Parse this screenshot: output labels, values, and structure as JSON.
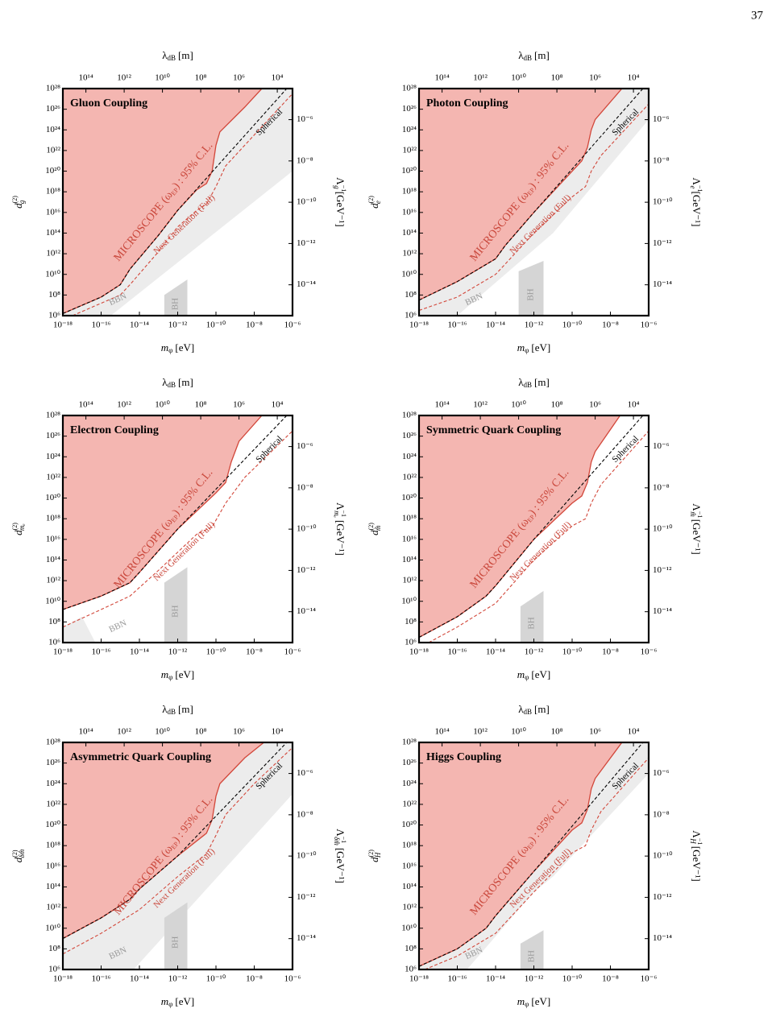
{
  "page_number": "37",
  "shared_axes": {
    "log_scale": true,
    "top_label": {
      "symbol": "λ",
      "subscript": "dB",
      "unit": "[m]"
    },
    "x_label": {
      "symbol": "m",
      "subscript": "φ",
      "unit": "[eV]"
    },
    "y_label": {
      "symbol": "d",
      "superscript": "(2)"
    },
    "y2_label": {
      "symbol": "Λ",
      "superscript": "−1",
      "unit": "[GeV⁻¹]"
    },
    "xlim": [
      1e-18,
      1e-06
    ],
    "ylim": [
      1000000.0,
      1e+28
    ],
    "x2lim": [
      1600000000000000.0,
      1600.0
    ],
    "y2lim": [
      3.2e-16,
      3.2e-05
    ],
    "xticks": [
      {
        "value": 1e-18,
        "label": "10⁻¹⁸"
      },
      {
        "value": 1e-16,
        "label": "10⁻¹⁶"
      },
      {
        "value": 1e-14,
        "label": "10⁻¹⁴"
      },
      {
        "value": 1e-12,
        "label": "10⁻¹²"
      },
      {
        "value": 1e-10,
        "label": "10⁻¹⁰"
      },
      {
        "value": 1e-08,
        "label": "10⁻⁸"
      },
      {
        "value": 1e-06,
        "label": "10⁻⁶"
      }
    ],
    "yticks": [
      {
        "value": 1000000.0,
        "label": "10⁶"
      },
      {
        "value": 100000000.0,
        "label": "10⁸"
      },
      {
        "value": 10000000000.0,
        "label": "10¹⁰"
      },
      {
        "value": 1000000000000.0,
        "label": "10¹²"
      },
      {
        "value": 100000000000000.0,
        "label": "10¹⁴"
      },
      {
        "value": 1e+16,
        "label": "10¹⁶"
      },
      {
        "value": 1e+18,
        "label": "10¹⁸"
      },
      {
        "value": 1e+20,
        "label": "10²⁰"
      },
      {
        "value": 1e+22,
        "label": "10²²"
      },
      {
        "value": 1e+24,
        "label": "10²⁴"
      },
      {
        "value": 1e+26,
        "label": "10²⁶"
      },
      {
        "value": 1e+28,
        "label": "10²⁸"
      }
    ],
    "x2ticks": [
      {
        "value": 100000000000000.0,
        "label": "10¹⁴"
      },
      {
        "value": 1000000000000.0,
        "label": "10¹²"
      },
      {
        "value": 10000000000.0,
        "label": "10¹⁰"
      },
      {
        "value": 100000000.0,
        "label": "10⁸"
      },
      {
        "value": 1000000.0,
        "label": "10⁶"
      },
      {
        "value": 10000.0,
        "label": "10⁴"
      }
    ],
    "y2ticks": [
      {
        "value": 1e-06,
        "label": "10⁻⁶"
      },
      {
        "value": 1e-08,
        "label": "10⁻⁸"
      },
      {
        "value": 1e-10,
        "label": "10⁻¹⁰"
      },
      {
        "value": 1e-12,
        "label": "10⁻¹²"
      },
      {
        "value": 1e-14,
        "label": "10⁻¹⁴"
      }
    ]
  },
  "annotations": {
    "microscope": {
      "before": "MICROSCOPE (ω",
      "subscript": "EP",
      "after": ") : 95% C.L."
    },
    "next_generation": "Next Generation (Full)",
    "spherical": "Spherical",
    "bbn": "BBN",
    "bh": "BH"
  },
  "colors": {
    "exclusion_fill": "#f4b6b1",
    "exclusion_line": "#d2473a",
    "next_generation": "#d2473a",
    "spherical": "#000000",
    "bbn_fill": "#ececec",
    "bh_fill": "#d5d5d5",
    "annotation": "#c9463a",
    "region_label": "#9a9a9a"
  },
  "chart_data": [
    {
      "type": "line",
      "title": "Gluon Coupling",
      "subscript": "g",
      "exclusion": {
        "x": [
          1e-18,
          1e-16,
          1e-15,
          3.2e-15,
          1e-13,
          1e-12,
          1e-11,
          3.2e-11,
          6.3e-11,
          1e-10,
          1.6e-10,
          3.2e-09,
          2.5e-08
        ],
        "y": [
          1600000.0,
          63000000.0,
          1000000000.0,
          32000000000.0,
          63000000000000.0,
          1.6e+16,
          1.6e+18,
          6.3e+18,
          1e+20,
          3.2e+22,
          6.3e+23,
          1.6e+26,
          1e+28
        ]
      },
      "next_generation": {
        "x": [
          3.2e-18,
          1e-16,
          1e-15,
          3.2e-15,
          1e-13,
          1e-12,
          1e-11,
          3.2e-11,
          1e-10,
          3.2e-10,
          1e-08,
          1e-06
        ],
        "y": [
          1000000.0,
          16000000.0,
          100000000.0,
          1000000000.0,
          1600000000000.0,
          400000000000000.0,
          1.6e+16,
          6.3e+16,
          3.2e+18,
          3.2e+20,
          3.2e+23,
          3.2e+27
        ]
      },
      "spherical": {
        "x": [
          1e-18,
          1e-16,
          1e-15,
          3.2e-15,
          1e-13,
          1e-12,
          5e-07
        ],
        "y": [
          1600000.0,
          63000000.0,
          1000000000.0,
          32000000000.0,
          63000000000000.0,
          1.6e+16,
          1e+28
        ]
      },
      "bbn_region": {
        "x": [
          1e-18,
          1e-18,
          1e-06,
          1e-06,
          3.2e-16
        ],
        "y": [
          1000000.0,
          1e+28,
          1e+28,
          1e+20,
          1000000.0
        ]
      },
      "bh_region": {
        "x": [
          2e-13,
          2e-13,
          3.2e-12,
          3.2e-12
        ],
        "y": [
          1000000.0,
          100000000.0,
          3200000000.0,
          1000000.0
        ]
      }
    },
    {
      "type": "line",
      "title": "Photon Coupling",
      "subscript": "e",
      "exclusion": {
        "x": [
          1e-18,
          1e-16,
          1e-14,
          3.2e-14,
          1e-12,
          1e-11,
          3.2e-10,
          6.3e-10,
          1e-09,
          1.6e-09,
          4e-08
        ],
        "y": [
          32000000.0,
          2000000000.0,
          320000000000.0,
          6300000000000.0,
          1e+16,
          1e+18,
          1e+21,
          2e+22,
          1e+24,
          1e+25,
          1e+28
        ]
      },
      "next_generation": {
        "x": [
          1e-18,
          1e-16,
          1e-14,
          3.2e-14,
          1e-12,
          1e-10,
          5e-10,
          1e-09,
          3.2e-09,
          1e-06
        ],
        "y": [
          3200000.0,
          63000000.0,
          10000000000.0,
          100000000000.0,
          100000000000000.0,
          3.2e+17,
          3.2e+18,
          1e+20,
          3.2e+21,
          3.2e+26
        ]
      },
      "spherical": {
        "x": [
          1e-18,
          1e-16,
          1e-14,
          3.2e-14,
          1e-12,
          5e-07
        ],
        "y": [
          32000000.0,
          2000000000.0,
          320000000000.0,
          6300000000000.0,
          1e+16,
          1e+28
        ]
      },
      "bbn_region": {
        "x": [
          1e-18,
          1e-18,
          1e-06,
          1e-06,
          1e-11,
          1e-16
        ],
        "y": [
          1000000.0,
          1e+28,
          1e+28,
          1e+25,
          100000000000000.0,
          1000000.0
        ]
      },
      "bh_region": {
        "x": [
          1.6e-13,
          1.6e-13,
          3.2e-12,
          3.2e-12
        ],
        "y": [
          1000000.0,
          20000000000.0,
          200000000000.0,
          1000000.0
        ]
      }
    },
    {
      "type": "line",
      "title": "Electron Coupling",
      "subscript": "mₑ",
      "exclusion": {
        "x": [
          1e-18,
          1e-16,
          3.2e-15,
          1e-14,
          1e-12,
          1e-10,
          3.2e-10,
          6.3e-10,
          1.6e-09,
          2.5e-08
        ],
        "y": [
          1600000000.0,
          32000000000.0,
          630000000000.0,
          6300000000000.0,
          1e+17,
          3.2e+20,
          3.2e+21,
          3.2e+23,
          3.2e+25,
          1e+28
        ]
      },
      "next_generation": {
        "x": [
          1e-18,
          1e-16,
          3.2e-15,
          1e-13,
          1e-11,
          6.3e-11,
          3.2e-10,
          3.2e-09,
          1e-06
        ],
        "y": [
          32000000.0,
          1600000000.0,
          32000000000.0,
          10000000000000.0,
          3.2e+16,
          1.6e+17,
          3.2e+19,
          1e+22,
          3.2e+26
        ]
      },
      "spherical": {
        "x": [
          1e-18,
          1e-16,
          3.2e-15,
          1e-14,
          1e-12,
          5e-07
        ],
        "y": [
          1600000000.0,
          32000000000.0,
          630000000000.0,
          6300000000000.0,
          1e+17,
          1e+28
        ]
      },
      "bbn_region": {
        "x": [
          1e-18,
          1e-18,
          1e-17,
          5e-17
        ],
        "y": [
          1000000.0,
          32000000.0,
          320000000.0,
          1000000.0
        ]
      },
      "bh_region": {
        "x": [
          2e-13,
          2e-13,
          3.2e-12,
          3.2e-12
        ],
        "y": [
          1000000.0,
          630000000000.0,
          20000000000000.0,
          1000000.0
        ]
      }
    },
    {
      "type": "line",
      "title": "Symmetric Quark Coupling",
      "subscript": "m̂",
      "exclusion": {
        "x": [
          1e-18,
          1e-16,
          3.2e-15,
          1e-14,
          1e-12,
          1e-10,
          3.2e-10,
          6.3e-10,
          1e-09,
          1.6e-09,
          3.2e-08
        ],
        "y": [
          3200000.0,
          320000000.0,
          32000000000.0,
          320000000000.0,
          1e+16,
          3.2e+19,
          1.6e+20,
          3.2e+21,
          3.2e+23,
          3.2e+24,
          1e+28
        ]
      },
      "next_generation": {
        "x": [
          3.2e-18,
          1e-16,
          1e-14,
          1e-12,
          1e-10,
          5e-10,
          1e-09,
          3.2e-09,
          1e-06
        ],
        "y": [
          1000000.0,
          32000000.0,
          6300000000.0,
          100000000000000.0,
          2e+17,
          1e+18,
          3.2e+19,
          2e+21,
          3.2e+26
        ]
      },
      "spherical": {
        "x": [
          1e-18,
          1e-16,
          3.2e-15,
          1e-14,
          1e-12,
          5e-07
        ],
        "y": [
          3200000.0,
          320000000.0,
          32000000000.0,
          320000000000.0,
          1e+16,
          1e+28
        ]
      },
      "bh_region": {
        "x": [
          2e-13,
          2e-13,
          3.2e-12,
          3.2e-12
        ],
        "y": [
          1000000.0,
          3200000000.0,
          100000000000.0,
          1000000.0
        ]
      }
    },
    {
      "type": "line",
      "title": "Asymmetric Quark Coupling",
      "subscript": "δm̂",
      "exclusion": {
        "x": [
          1e-18,
          1e-16,
          3.2e-15,
          1e-14,
          1e-12,
          3.2e-11,
          6.3e-11,
          1e-10,
          1.6e-10,
          3.2e-09,
          3.2e-08
        ],
        "y": [
          1000000000.0,
          100000000000.0,
          6300000000000.0,
          63000000000000.0,
          1e+17,
          1.6e+19,
          3.2e+20,
          6.3e+22,
          1e+24,
          3.2e+26,
          1e+28
        ]
      },
      "next_generation": {
        "x": [
          1e-18,
          1e-16,
          1e-14,
          1e-12,
          3.2e-11,
          1e-10,
          3.2e-10,
          1e-08,
          1e-06
        ],
        "y": [
          32000000.0,
          3200000000.0,
          630000000000.0,
          1000000000000000.0,
          1.6e+17,
          1e+19,
          1e+21,
          1e+24,
          3.2e+27
        ]
      },
      "spherical": {
        "x": [
          1e-18,
          1e-16,
          3.2e-15,
          1e-14,
          1e-12,
          5e-07
        ],
        "y": [
          1000000000.0,
          100000000000.0,
          6300000000000.0,
          63000000000000.0,
          1e+17,
          1e+28
        ]
      },
      "bbn_region": {
        "x": [
          1e-18,
          1e-18,
          1e-06,
          1e-06,
          5e-15
        ],
        "y": [
          1000000.0,
          1e+28,
          1e+28,
          1e+23,
          1000000.0
        ]
      },
      "bh_region": {
        "x": [
          2e-13,
          2e-13,
          3.2e-12,
          3.2e-12
        ],
        "y": [
          1000000.0,
          100000000000.0,
          3200000000000.0,
          1000000.0
        ]
      }
    },
    {
      "type": "line",
      "title": "Higgs Coupling",
      "subscript": "H",
      "exclusion": {
        "x": [
          1e-18,
          1e-16,
          3.2e-15,
          1e-14,
          1e-12,
          1e-10,
          3.2e-10,
          6.3e-10,
          1e-09,
          1.6e-09,
          4e-08
        ],
        "y": [
          2000000.0,
          100000000.0,
          10000000000.0,
          160000000000.0,
          3200000000000000.0,
          3.2e+19,
          1.6e+20,
          3.2e+21,
          3.2e+23,
          3.2e+24,
          1e+28
        ]
      },
      "next_generation": {
        "x": [
          2e-18,
          1e-16,
          1e-14,
          1e-12,
          1e-10,
          5e-10,
          1e-09,
          3.2e-09,
          1e-06
        ],
        "y": [
          1000000.0,
          20000000.0,
          3200000000.0,
          32000000000000.0,
          2e+17,
          1e+18,
          3.2e+19,
          2e+21,
          3.2e+26
        ]
      },
      "spherical": {
        "x": [
          1e-18,
          1e-16,
          3.2e-15,
          1e-14,
          1e-12,
          5e-07
        ],
        "y": [
          2000000.0,
          100000000.0,
          10000000000.0,
          160000000000.0,
          3200000000000000.0,
          1e+28
        ]
      },
      "bbn_region": {
        "x": [
          1e-18,
          1e-18,
          1e-06,
          1e-06,
          1e-11,
          1e-12,
          3.2e-16
        ],
        "y": [
          1000000.0,
          1e+28,
          1e+28,
          1e+25,
          1000000000000000.0,
          32000000000000.0,
          1000000.0
        ]
      },
      "bh_region": {
        "x": [
          2e-13,
          2e-13,
          3.2e-12,
          3.2e-12
        ],
        "y": [
          1000000.0,
          320000000.0,
          6300000000.0,
          1000000.0
        ]
      }
    }
  ]
}
